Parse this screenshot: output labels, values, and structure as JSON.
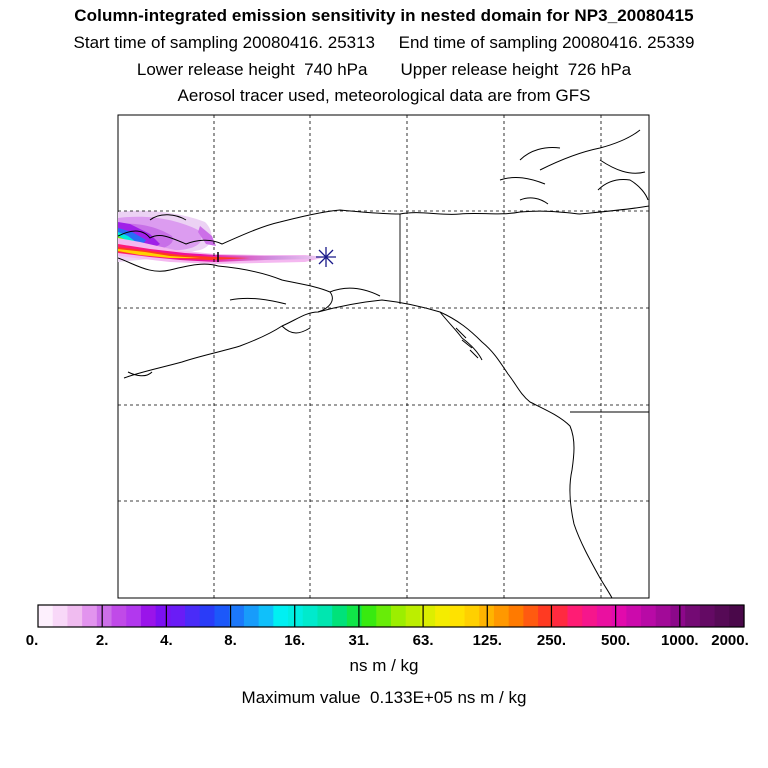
{
  "header": {
    "title": "Column-integrated emission sensitivity in nested domain for NP3_20080415",
    "sampling_line": "Start time of sampling 20080416. 25313     End time of sampling 20080416. 25339",
    "release_line": "Lower release height  740 hPa       Upper release height  726 hPa",
    "tracer_line": "Aerosol tracer used, meteorological data are from GFS"
  },
  "colorbar": {
    "tick_labels": [
      "0.",
      "2.",
      "4.",
      "8.",
      "16.",
      "31.",
      "63.",
      "125.",
      "250.",
      "500.",
      "1000.",
      "2000."
    ],
    "colors": [
      "#fdf0fd",
      "#f8d8f8",
      "#f0bcf0",
      "#e294ee",
      "#cc6fe8",
      "#c04ae8",
      "#b238ee",
      "#9a14ea",
      "#7c10f2",
      "#6a1cf6",
      "#4a2cf8",
      "#2a3cf8",
      "#1c58fa",
      "#1c78fa",
      "#189cfa",
      "#10c0fa",
      "#00f0f2",
      "#00eee2",
      "#00eacc",
      "#00e6b0",
      "#00e27a",
      "#10e648",
      "#38ea10",
      "#68ec08",
      "#9cee00",
      "#bcee00",
      "#dcee00",
      "#f4ec00",
      "#ffe200",
      "#ffd000",
      "#ffb400",
      "#ff9800",
      "#ff7a00",
      "#ff5a10",
      "#ff3a22",
      "#ff2a40",
      "#ff1c74",
      "#f6168c",
      "#ea10a0",
      "#e20aac",
      "#cc0aac",
      "#b80aa6",
      "#a20a98",
      "#8c088a",
      "#740a74",
      "#640a64",
      "#560a56",
      "#4a084a"
    ],
    "units": "ns m / kg",
    "max_value_line": "Maximum value  0.133E+05 ns m / kg"
  },
  "map": {
    "receptor_marker": "asterisk-icon"
  }
}
